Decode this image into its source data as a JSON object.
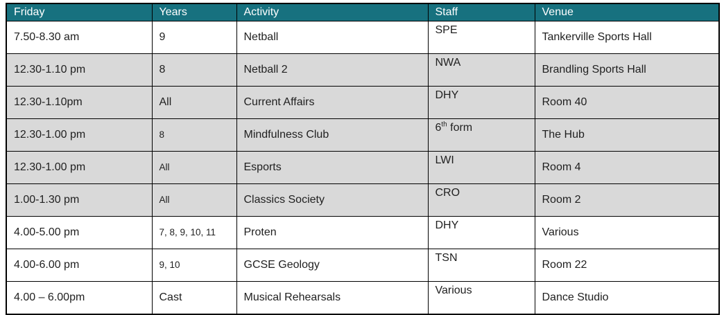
{
  "colors": {
    "header_bg": "#17717F",
    "header_text": "#ffffff",
    "shaded_row_bg": "#d9d9d9",
    "border": "#000000",
    "text": "#1f1f1f"
  },
  "table": {
    "columns": [
      {
        "key": "time",
        "label": "Friday"
      },
      {
        "key": "years",
        "label": "Years"
      },
      {
        "key": "activity",
        "label": "Activity"
      },
      {
        "key": "staff",
        "label": "Staff"
      },
      {
        "key": "venue",
        "label": "Venue"
      }
    ],
    "rows": [
      {
        "time": "7.50-8.30 am",
        "years": "9",
        "activity": "Netball",
        "staff": "SPE",
        "venue": "Tankerville Sports Hall",
        "shaded": false,
        "years_small": false
      },
      {
        "time": "12.30-1.10 pm",
        "years": "8",
        "activity": "Netball 2",
        "staff": "NWA",
        "venue": "Brandling Sports Hall",
        "shaded": true,
        "years_small": false
      },
      {
        "time": "12.30-1.10pm",
        "years": "All",
        "activity": "Current Affairs",
        "staff": "DHY",
        "venue": "Room 40",
        "shaded": true,
        "years_small": false
      },
      {
        "time": "12.30-1.00 pm",
        "years": "8",
        "activity": "Mindfulness Club",
        "staff": "6^th^ form",
        "venue": "The Hub",
        "shaded": true,
        "years_small": true
      },
      {
        "time": "12.30-1.00 pm",
        "years": "All",
        "activity": "Esports",
        "staff": "LWI",
        "venue": "Room 4",
        "shaded": true,
        "years_small": true
      },
      {
        "time": "1.00-1.30 pm",
        "years": "All",
        "activity": "Classics Society",
        "staff": "CRO",
        "venue": "Room 2",
        "shaded": true,
        "years_small": true
      },
      {
        "time": "4.00-5.00 pm",
        "years": "7, 8, 9, 10, 11",
        "activity": "Proten",
        "staff": "DHY",
        "venue": "Various",
        "shaded": false,
        "years_small": true
      },
      {
        "time": "4.00-6.00 pm",
        "years": "9, 10",
        "activity": "GCSE Geology",
        "staff": "TSN",
        "venue": "Room 22",
        "shaded": false,
        "years_small": true
      },
      {
        "time": "4.00 – 6.00pm",
        "years": "Cast",
        "activity": "Musical Rehearsals",
        "staff": "Various",
        "venue": "Dance Studio",
        "shaded": false,
        "years_small": false
      }
    ]
  }
}
